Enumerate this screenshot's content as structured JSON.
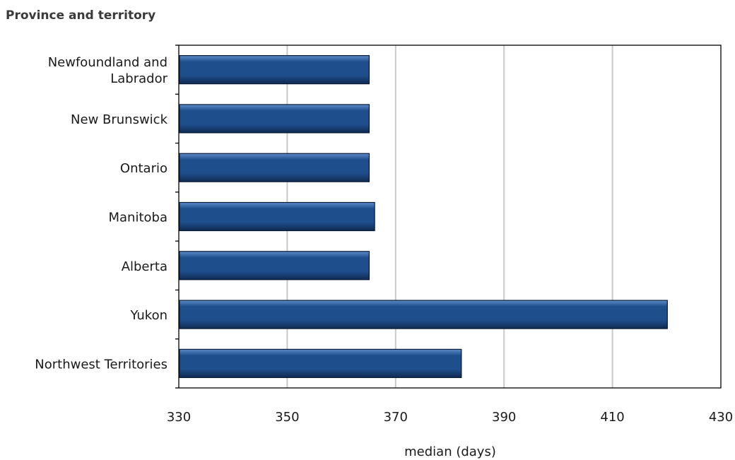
{
  "chart_data": {
    "type": "bar",
    "orientation": "horizontal",
    "y_axis_title": "Province and territory",
    "xlabel": "median (days)",
    "categories": [
      [
        "Newfoundland and",
        "Labrador"
      ],
      [
        "New Brunswick"
      ],
      [
        "Ontario"
      ],
      [
        "Manitoba"
      ],
      [
        "Alberta"
      ],
      [
        "Yukon"
      ],
      [
        "Northwest Territories"
      ]
    ],
    "values": [
      365,
      365,
      365,
      366,
      365,
      420,
      382
    ],
    "xlim": [
      330,
      430
    ],
    "xticks": [
      "330",
      "350",
      "370",
      "390",
      "410",
      "430"
    ],
    "grid": "vertical",
    "legend": "none",
    "colors": {
      "bar": "#1f4e8c",
      "bar_light": "#5d8ccc",
      "bar_dark": "#0f2a52",
      "bar_outline": "#0a1a33",
      "grid": "#c8c8c8",
      "axis": "#000000"
    }
  }
}
